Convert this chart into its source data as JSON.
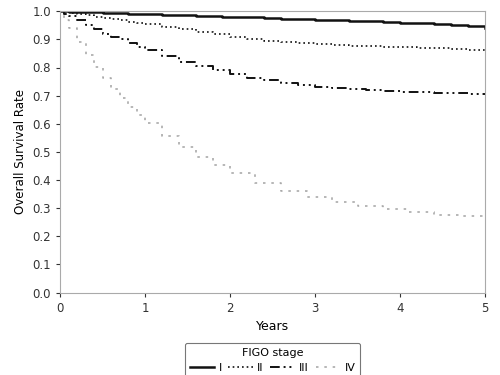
{
  "xlabel": "Years",
  "ylabel": "Overall Survival Rate",
  "xlim": [
    0,
    5
  ],
  "ylim": [
    0.0,
    1.0
  ],
  "xticks": [
    0,
    1,
    2,
    3,
    4,
    5
  ],
  "yticks": [
    0.0,
    0.1,
    0.2,
    0.3,
    0.4,
    0.5,
    0.6,
    0.7,
    0.8,
    0.9,
    1.0
  ],
  "legend_title": "FIGO stage",
  "stages": [
    "I",
    "II",
    "III",
    "IV"
  ],
  "stage_I_x": [
    0.0,
    0.05,
    0.1,
    0.2,
    0.3,
    0.4,
    0.5,
    0.6,
    0.7,
    0.8,
    0.9,
    1.0,
    1.1,
    1.2,
    1.3,
    1.4,
    1.5,
    1.6,
    1.7,
    1.8,
    1.9,
    2.0,
    2.2,
    2.4,
    2.6,
    2.8,
    3.0,
    3.2,
    3.4,
    3.6,
    3.8,
    4.0,
    4.2,
    4.4,
    4.6,
    4.8,
    5.0
  ],
  "stage_I_y": [
    1.0,
    1.0,
    0.999,
    0.998,
    0.997,
    0.996,
    0.995,
    0.994,
    0.993,
    0.992,
    0.991,
    0.99,
    0.989,
    0.988,
    0.987,
    0.986,
    0.985,
    0.984,
    0.983,
    0.982,
    0.981,
    0.98,
    0.978,
    0.976,
    0.974,
    0.972,
    0.97,
    0.968,
    0.966,
    0.964,
    0.962,
    0.96,
    0.957,
    0.954,
    0.951,
    0.947,
    0.94
  ],
  "stage_II_x": [
    0.0,
    0.05,
    0.1,
    0.2,
    0.3,
    0.4,
    0.5,
    0.6,
    0.7,
    0.8,
    0.9,
    1.0,
    1.2,
    1.4,
    1.6,
    1.8,
    2.0,
    2.2,
    2.4,
    2.6,
    2.8,
    3.0,
    3.2,
    3.4,
    3.6,
    3.8,
    4.0,
    4.2,
    4.4,
    4.6,
    4.8,
    5.0
  ],
  "stage_II_y": [
    1.0,
    0.997,
    0.994,
    0.99,
    0.985,
    0.981,
    0.976,
    0.972,
    0.968,
    0.963,
    0.959,
    0.954,
    0.945,
    0.936,
    0.927,
    0.918,
    0.909,
    0.902,
    0.896,
    0.891,
    0.887,
    0.884,
    0.881,
    0.878,
    0.876,
    0.874,
    0.872,
    0.87,
    0.868,
    0.866,
    0.864,
    0.86
  ],
  "stage_III_x": [
    0.0,
    0.05,
    0.1,
    0.2,
    0.3,
    0.4,
    0.5,
    0.6,
    0.7,
    0.8,
    0.9,
    1.0,
    1.2,
    1.4,
    1.6,
    1.8,
    2.0,
    2.2,
    2.4,
    2.6,
    2.8,
    3.0,
    3.2,
    3.4,
    3.6,
    3.8,
    4.0,
    4.2,
    4.4,
    4.6,
    4.8,
    5.0
  ],
  "stage_III_y": [
    1.0,
    0.992,
    0.984,
    0.968,
    0.952,
    0.936,
    0.92,
    0.91,
    0.9,
    0.886,
    0.874,
    0.862,
    0.84,
    0.821,
    0.805,
    0.79,
    0.776,
    0.764,
    0.754,
    0.745,
    0.738,
    0.732,
    0.727,
    0.723,
    0.72,
    0.717,
    0.714,
    0.712,
    0.71,
    0.708,
    0.706,
    0.704
  ],
  "stage_IV_x": [
    0.0,
    0.05,
    0.1,
    0.2,
    0.3,
    0.4,
    0.5,
    0.6,
    0.7,
    0.8,
    0.9,
    1.0,
    1.2,
    1.4,
    1.6,
    1.8,
    2.0,
    2.3,
    2.6,
    2.9,
    3.2,
    3.5,
    3.8,
    4.1,
    4.4,
    4.7,
    5.0
  ],
  "stage_IV_y": [
    1.0,
    0.97,
    0.94,
    0.89,
    0.845,
    0.802,
    0.762,
    0.725,
    0.69,
    0.659,
    0.63,
    0.603,
    0.556,
    0.516,
    0.482,
    0.452,
    0.426,
    0.39,
    0.362,
    0.34,
    0.322,
    0.308,
    0.296,
    0.285,
    0.277,
    0.271,
    0.268
  ],
  "background_color": "#ffffff"
}
